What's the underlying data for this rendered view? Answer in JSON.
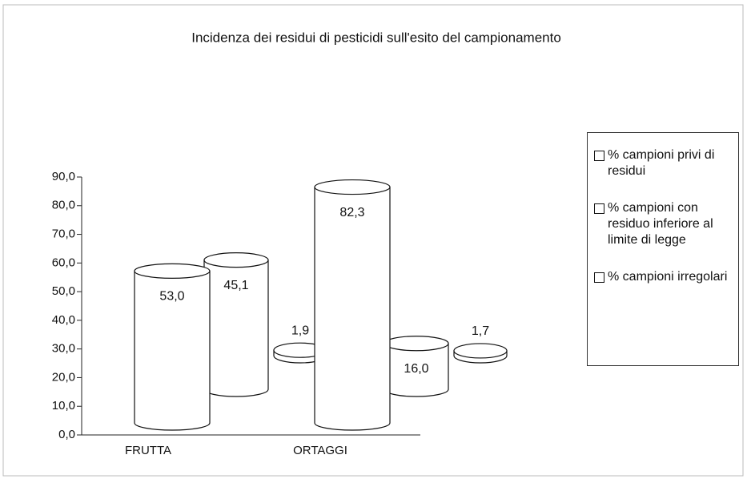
{
  "chart_data": {
    "type": "bar3d",
    "title": "Incidenza dei residui di pesticidi sull'esito del campionamento",
    "categories": [
      "FRUTTA",
      "ORTAGGI"
    ],
    "series": [
      {
        "name": "% campioni privi di residui",
        "color": "#ffffff",
        "values": [
          53.0,
          82.3
        ],
        "value_labels": [
          "53,0",
          "82,3"
        ]
      },
      {
        "name": "% campioni con residuo inferiore al limite di legge",
        "color": "#ffffff",
        "values": [
          45.1,
          16.0
        ],
        "value_labels": [
          "45,1",
          "16,0"
        ]
      },
      {
        "name": "% campioni irregolari",
        "color": "#ffffff",
        "values": [
          1.9,
          1.7
        ],
        "value_labels": [
          "1,9",
          "1,7"
        ]
      }
    ],
    "ylim": [
      0,
      90
    ],
    "yticks": [
      {
        "value": 0,
        "label": "0,0"
      },
      {
        "value": 10,
        "label": "10,0"
      },
      {
        "value": 20,
        "label": "20,0"
      },
      {
        "value": 30,
        "label": "30,0"
      },
      {
        "value": 40,
        "label": "40,0"
      },
      {
        "value": 50,
        "label": "50,0"
      },
      {
        "value": 60,
        "label": "60,0"
      },
      {
        "value": 70,
        "label": "70,0"
      },
      {
        "value": 80,
        "label": "80,0"
      },
      {
        "value": 90,
        "label": "90,0"
      }
    ]
  }
}
